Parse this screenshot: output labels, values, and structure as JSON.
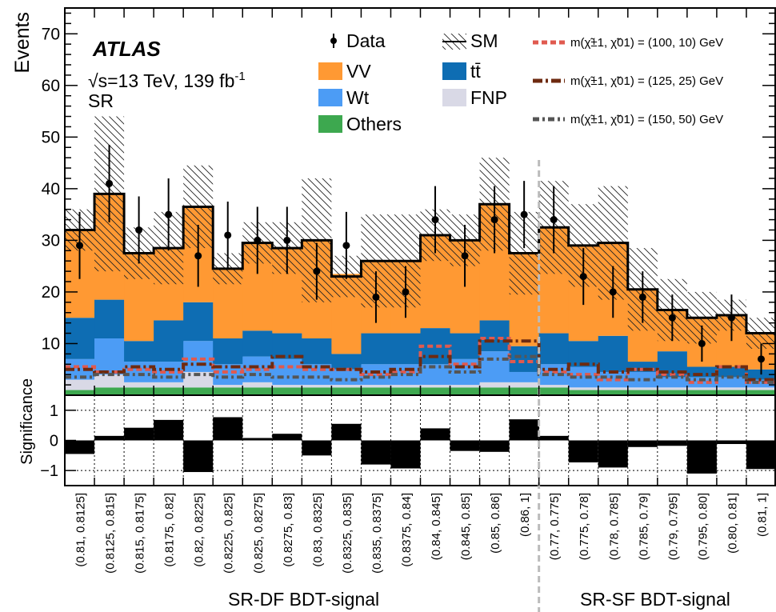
{
  "chart_data": [
    {
      "type": "bar",
      "stacked": true,
      "ylabel": "Events",
      "ylim": [
        0,
        75
      ],
      "yticks": [
        10,
        20,
        30,
        40,
        50,
        60,
        70
      ],
      "categories": [
        "(0.81, 0.8125]",
        "(0.8125, 0.815]",
        "(0.815, 0.8175]",
        "(0.8175, 0.82]",
        "(0.82, 0.8225]",
        "(0.8225, 0.825]",
        "(0.825, 0.8275]",
        "(0.8275, 0.83]",
        "(0.83, 0.8325]",
        "(0.8325, 0.835]",
        "(0.835, 0.8375]",
        "(0.8375, 0.84]",
        "(0.84, 0.845]",
        "(0.845, 0.85]",
        "(0.85, 0.86]",
        "(0.86, 1]",
        "(0.77, 0.775]",
        "(0.775, 0.78]",
        "(0.78, 0.785]",
        "(0.785, 0.79]",
        "(0.79, 0.795]",
        "(0.795, 0.80]",
        "(0.80, 0.81]",
        "(0.81, 1]"
      ],
      "regions": [
        {
          "label": "SR-DF BDT-signal",
          "first_bin": 0,
          "last_bin": 15
        },
        {
          "label": "SR-SF BDT-signal",
          "first_bin": 16,
          "last_bin": 23
        }
      ],
      "labels": {
        "experiment": "ATLAS",
        "energy_prefix": "√s=13 TeV, 139 fb",
        "energy_sup": "-1",
        "region": "SR"
      },
      "legend": {
        "data": "Data",
        "sm": "SM",
        "vv": "VV",
        "ttbar": "tt̄",
        "wt": "Wt",
        "fnp": "FNP",
        "others": "Others",
        "sig1": "m(χ̃±1, χ̃01) = (100, 10) GeV",
        "sig2": "m(χ̃±1, χ̃01) = (125, 25) GeV",
        "sig3": "m(χ̃±1, χ̃01) = (150, 50) GeV"
      },
      "colors": {
        "vv": "#ff9933",
        "ttbar": "#0e6db3",
        "wt": "#4c9cf5",
        "fnp": "#d9d9e6",
        "others": "#3da84f",
        "sig1": "#e05a4f",
        "sig2": "#6e2a10",
        "sig3": "#555555"
      },
      "series": [
        {
          "name": "Others",
          "values": [
            1,
            1.5,
            1.5,
            1.5,
            1.5,
            1.5,
            1.5,
            1.5,
            1.5,
            1.5,
            1.5,
            1.5,
            1.5,
            1.5,
            1.5,
            1.5,
            1.5,
            1,
            1,
            1,
            1,
            1,
            1,
            1
          ]
        },
        {
          "name": "FNP",
          "values": [
            2,
            2.5,
            1,
            1,
            3,
            0.5,
            1,
            0.5,
            0.5,
            0.5,
            0.5,
            0.5,
            0.5,
            0.5,
            1,
            1,
            0.5,
            0.5,
            0.5,
            0.5,
            0.5,
            0.5,
            0.5,
            0.5
          ]
        },
        {
          "name": "Wt",
          "values": [
            4,
            7,
            4,
            4,
            6,
            4,
            5,
            5,
            4,
            3,
            4,
            4,
            4,
            5,
            6,
            2,
            4,
            4,
            3,
            3,
            2,
            2,
            2,
            1.5
          ]
        },
        {
          "name": "tt̄",
          "values": [
            8,
            7.5,
            4,
            8,
            7.5,
            5,
            5,
            5,
            5,
            3,
            6,
            6,
            7,
            5,
            6,
            5,
            6,
            5,
            7,
            2,
            5,
            2,
            2,
            2
          ]
        },
        {
          "name": "VV",
          "values": [
            17,
            20.5,
            17,
            14,
            18.5,
            13.5,
            17,
            16.5,
            19,
            15.5,
            14,
            14,
            18,
            18,
            22.5,
            18,
            20.5,
            18.5,
            18,
            14,
            8,
            9.5,
            10,
            7
          ]
        }
      ],
      "sm_total": [
        32,
        39,
        27.5,
        28.5,
        36.5,
        24.5,
        29.5,
        28.5,
        30,
        23,
        26,
        26,
        31,
        30,
        37,
        27.5,
        32.5,
        29,
        29.5,
        20.5,
        16.5,
        15,
        15.5,
        12
      ],
      "sm_uncertainty": [
        4,
        15,
        5,
        7,
        8,
        3,
        4,
        5,
        12,
        4,
        9,
        9,
        5,
        5,
        9,
        8,
        9,
        8,
        11,
        8,
        6,
        5,
        3,
        3
      ],
      "data": [
        29,
        41,
        32,
        35,
        27,
        31,
        30,
        30,
        24,
        29,
        19,
        20,
        34,
        27,
        34,
        35,
        34,
        23,
        20,
        19,
        15,
        10,
        15,
        7
      ],
      "data_err": [
        6.5,
        7.5,
        6.5,
        7,
        6,
        6.5,
        6.5,
        6.5,
        5.5,
        6.5,
        5,
        5,
        6.5,
        6,
        6.5,
        6.5,
        6.5,
        5.5,
        5,
        5,
        4.5,
        3.5,
        4.5,
        3
      ],
      "signals": [
        {
          "name": "(100, 10) GeV",
          "values": [
            5.5,
            4.5,
            5,
            4.5,
            7,
            4.5,
            5,
            5.5,
            5,
            5,
            4,
            4.5,
            9.5,
            6,
            11,
            6.5,
            4.5,
            4,
            3,
            5,
            4,
            2.5,
            5.5,
            2.5
          ]
        },
        {
          "name": "(125, 25) GeV",
          "values": [
            5,
            4.5,
            5.5,
            5,
            6,
            5.5,
            5.5,
            7.5,
            5.5,
            5,
            4.5,
            5,
            7.5,
            5.5,
            10.5,
            10.5,
            5,
            6,
            4.5,
            5,
            4.5,
            4,
            5.5,
            3
          ]
        },
        {
          "name": "(150, 50) GeV",
          "values": [
            3.5,
            4,
            4,
            3.5,
            4,
            3.5,
            4,
            3.5,
            3.5,
            3,
            3.5,
            4,
            5.5,
            4.5,
            7,
            7.5,
            4,
            3.5,
            3.5,
            3,
            3.5,
            3,
            3.5,
            2.5
          ]
        }
      ]
    },
    {
      "type": "bar",
      "ylabel": "Significance",
      "ylim": [
        -1.5,
        1.5
      ],
      "yticks": [
        -1,
        0,
        1
      ],
      "values": [
        -0.45,
        0.15,
        0.42,
        0.68,
        -1.05,
        0.77,
        0.08,
        0.22,
        -0.5,
        0.55,
        -0.8,
        -0.93,
        0.4,
        -0.35,
        -0.38,
        0.7,
        0.15,
        -0.73,
        -0.9,
        -0.22,
        -0.18,
        -1.1,
        -0.12,
        -0.95
      ]
    }
  ]
}
